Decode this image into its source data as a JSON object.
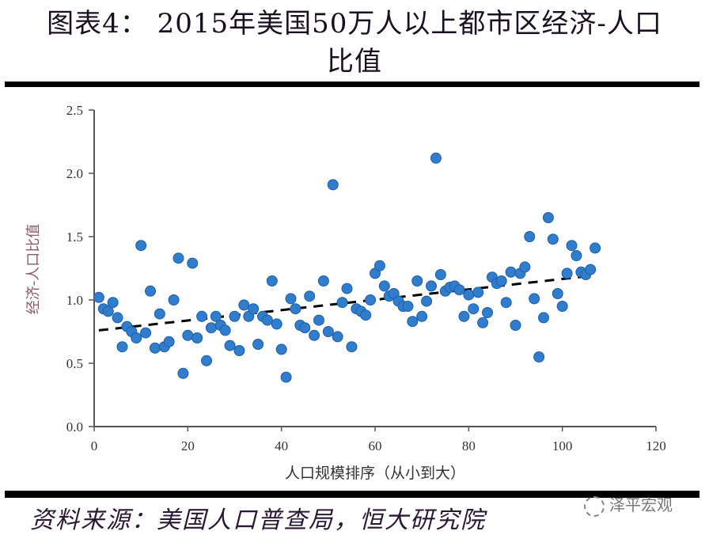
{
  "header": {
    "title_line1": "图表4：  2015年美国50万人以上都市区经济-人口",
    "title_line2": "比值"
  },
  "footer": {
    "source": "资料来源：美国人口普查局，恒大研究院",
    "watermark": "泽平宏观"
  },
  "colors": {
    "point": "#2f7dcc",
    "point_edge": "#1f5fa6",
    "trend": "#000000",
    "axis": "#555555",
    "ylabel": "#8a5a6a"
  },
  "chart_data": {
    "type": "scatter",
    "title": "2015年美国50万人以上都市区经济-人口比值",
    "xlabel": "人口规模排序（从小到大）",
    "ylabel": "经济-人口比值",
    "xlim": [
      0,
      120
    ],
    "ylim": [
      0,
      2.5
    ],
    "xticks": [
      0,
      20,
      40,
      60,
      80,
      100,
      120
    ],
    "yticks": [
      "0.0",
      "0.5",
      "1.0",
      "1.5",
      "2.0",
      "2.5"
    ],
    "grid": false,
    "legend": "none",
    "trendline": {
      "style": "dashed",
      "x": [
        1,
        106
      ],
      "y": [
        0.76,
        1.19
      ]
    },
    "points": [
      [
        1,
        1.02
      ],
      [
        2,
        0.93
      ],
      [
        3,
        0.91
      ],
      [
        4,
        0.98
      ],
      [
        5,
        0.86
      ],
      [
        6,
        0.63
      ],
      [
        7,
        0.79
      ],
      [
        8,
        0.75
      ],
      [
        9,
        0.7
      ],
      [
        10,
        1.43
      ],
      [
        11,
        0.74
      ],
      [
        12,
        1.07
      ],
      [
        13,
        0.62
      ],
      [
        14,
        0.89
      ],
      [
        15,
        0.63
      ],
      [
        16,
        0.67
      ],
      [
        17,
        1.0
      ],
      [
        18,
        1.33
      ],
      [
        19,
        0.42
      ],
      [
        20,
        0.72
      ],
      [
        21,
        1.29
      ],
      [
        22,
        0.7
      ],
      [
        23,
        0.87
      ],
      [
        24,
        0.52
      ],
      [
        25,
        0.78
      ],
      [
        26,
        0.87
      ],
      [
        27,
        0.8
      ],
      [
        28,
        0.76
      ],
      [
        29,
        0.64
      ],
      [
        30,
        0.87
      ],
      [
        31,
        0.6
      ],
      [
        32,
        0.96
      ],
      [
        33,
        0.87
      ],
      [
        34,
        0.93
      ],
      [
        35,
        0.65
      ],
      [
        36,
        0.87
      ],
      [
        37,
        0.84
      ],
      [
        38,
        1.15
      ],
      [
        39,
        0.81
      ],
      [
        40,
        0.61
      ],
      [
        41,
        0.39
      ],
      [
        42,
        1.01
      ],
      [
        43,
        0.93
      ],
      [
        44,
        0.8
      ],
      [
        45,
        0.78
      ],
      [
        46,
        1.03
      ],
      [
        47,
        0.72
      ],
      [
        48,
        0.84
      ],
      [
        49,
        1.15
      ],
      [
        50,
        0.75
      ],
      [
        51,
        1.91
      ],
      [
        52,
        0.71
      ],
      [
        53,
        0.98
      ],
      [
        54,
        1.09
      ],
      [
        55,
        0.63
      ],
      [
        56,
        0.93
      ],
      [
        57,
        0.91
      ],
      [
        58,
        0.88
      ],
      [
        59,
        1.0
      ],
      [
        60,
        1.21
      ],
      [
        61,
        1.27
      ],
      [
        62,
        1.11
      ],
      [
        63,
        1.03
      ],
      [
        64,
        1.05
      ],
      [
        65,
        0.99
      ],
      [
        66,
        0.95
      ],
      [
        67,
        0.95
      ],
      [
        68,
        0.83
      ],
      [
        69,
        1.15
      ],
      [
        70,
        0.87
      ],
      [
        71,
        0.99
      ],
      [
        72,
        1.11
      ],
      [
        73,
        2.12
      ],
      [
        74,
        1.2
      ],
      [
        75,
        1.07
      ],
      [
        76,
        1.1
      ],
      [
        77,
        1.11
      ],
      [
        78,
        1.08
      ],
      [
        79,
        0.87
      ],
      [
        80,
        1.04
      ],
      [
        81,
        0.93
      ],
      [
        82,
        1.06
      ],
      [
        83,
        0.82
      ],
      [
        84,
        0.9
      ],
      [
        85,
        1.18
      ],
      [
        86,
        1.13
      ],
      [
        87,
        1.15
      ],
      [
        88,
        0.98
      ],
      [
        89,
        1.22
      ],
      [
        90,
        0.8
      ],
      [
        91,
        1.21
      ],
      [
        92,
        1.26
      ],
      [
        93,
        1.5
      ],
      [
        94,
        1.01
      ],
      [
        95,
        0.55
      ],
      [
        96,
        0.86
      ],
      [
        97,
        1.65
      ],
      [
        98,
        1.48
      ],
      [
        99,
        1.05
      ],
      [
        100,
        0.95
      ],
      [
        101,
        1.21
      ],
      [
        102,
        1.43
      ],
      [
        103,
        1.35
      ],
      [
        104,
        1.22
      ],
      [
        105,
        1.2
      ],
      [
        106,
        1.24
      ],
      [
        107,
        1.41
      ]
    ]
  }
}
